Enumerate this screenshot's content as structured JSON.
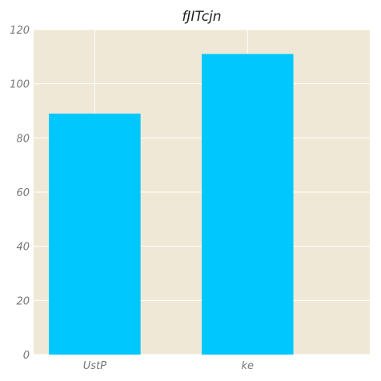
{
  "chart_data": {
    "type": "bar",
    "title": "fJITcjn",
    "xlabel": "",
    "ylabel": "",
    "categories": [
      "UstP",
      "ke"
    ],
    "values": [
      89,
      111
    ],
    "ylim": [
      0,
      120
    ],
    "yticks": [
      0,
      20,
      40,
      60,
      80,
      100,
      120
    ],
    "grid": true,
    "colors": {
      "bar": "#00c8ff",
      "plot_background": "#efe8d6",
      "grid": "#ffffff"
    }
  }
}
